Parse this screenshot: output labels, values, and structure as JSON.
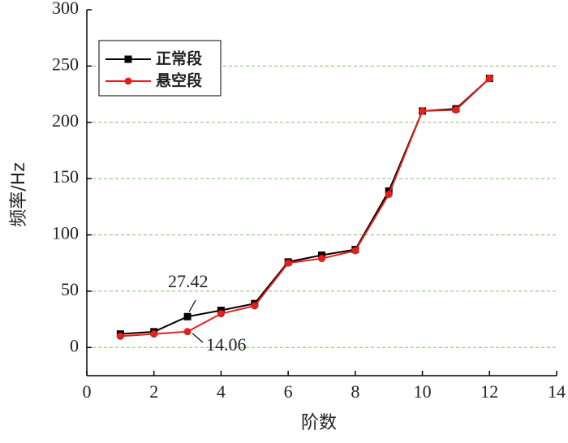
{
  "chart_data": {
    "type": "line",
    "x_label": "阶数",
    "y_label": "频率/Hz",
    "x": [
      1,
      2,
      3,
      4,
      5,
      6,
      7,
      8,
      9,
      10,
      11,
      12
    ],
    "series": [
      {
        "name": "正常段",
        "color": "#000000",
        "marker": "square",
        "values": [
          12,
          14,
          27.42,
          33,
          39,
          76,
          82,
          87,
          139,
          210,
          212,
          239
        ]
      },
      {
        "name": "悬空段",
        "color": "#e3201c",
        "marker": "circle",
        "values": [
          10,
          12,
          14.06,
          30,
          37,
          75,
          79,
          86,
          136,
          210,
          211,
          239
        ]
      }
    ],
    "xlim": [
      0,
      14
    ],
    "xticks": [
      0,
      2,
      4,
      6,
      8,
      10,
      12,
      14
    ],
    "ylim": [
      -25,
      300
    ],
    "yticks": [
      0,
      50,
      100,
      150,
      200,
      250,
      300
    ],
    "grid": true,
    "grid_color": "#7cc26a",
    "legend": "upper left",
    "annotations": [
      "27.42",
      "14.06"
    ]
  }
}
